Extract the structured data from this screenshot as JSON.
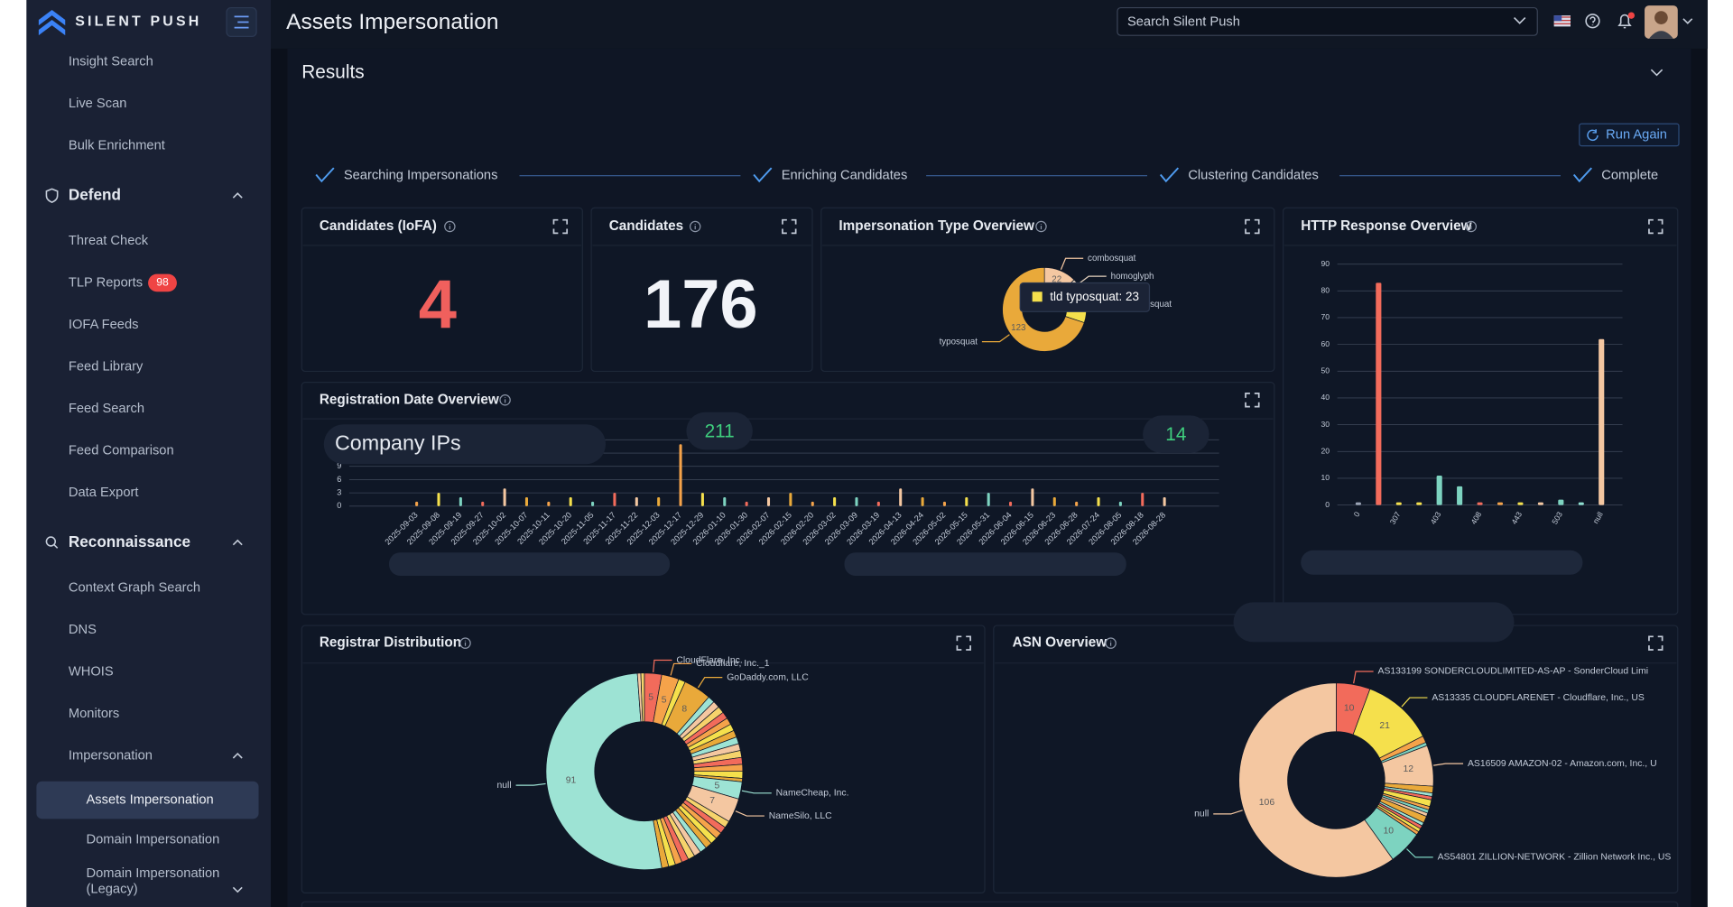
{
  "header": {
    "brand": "SILENT PUSH",
    "title": "Assets Impersonation",
    "search_placeholder": "Search Silent Push"
  },
  "sidebar": {
    "items": [
      "Insight Search",
      "Live Scan",
      "Bulk Enrichment"
    ],
    "defend": {
      "title": "Defend",
      "items": [
        "Threat Check",
        "TLP Reports",
        "IOFA Feeds",
        "Feed Library",
        "Feed Search",
        "Feed Comparison",
        "Data Export"
      ],
      "tlp_reports_badge": 98
    },
    "reconnaissance": {
      "title": "Reconnaissance",
      "items": [
        "Context Graph Search",
        "DNS",
        "WHOIS",
        "Monitors"
      ],
      "impersonation": {
        "title": "Impersonation",
        "items": [
          "Assets Impersonation",
          "Domain Impersonation",
          "Domain Impersonation (Legacy)"
        ]
      }
    }
  },
  "results": {
    "title": "Results",
    "run_again": "Run Again",
    "steps": [
      "Searching Impersonations",
      "Enriching Candidates",
      "Clustering Candidates",
      "Complete"
    ]
  },
  "stats": [
    {
      "title": "Candidates (IoFA)",
      "value": 4
    },
    {
      "title": "Candidates",
      "value": 176
    }
  ],
  "chart_data": [
    {
      "type": "pie",
      "title": "Impersonation Type Overview",
      "categories": [
        "combosquat",
        "homoglyph",
        "tld typosquat",
        "typosquat"
      ],
      "values": [
        22,
        8,
        23,
        123
      ],
      "colors": [
        "#f4c7a1",
        "#e6d3bf",
        "#f5e04c",
        "#e9a93a"
      ],
      "tooltip": "tld typosquat: 23"
    },
    {
      "type": "bar",
      "title": "HTTP Response Overview",
      "categories": [
        "0",
        null,
        "307",
        null,
        "403",
        null,
        "408",
        null,
        "443",
        null,
        "503",
        null,
        "null"
      ],
      "values": [
        1,
        83,
        1,
        1,
        11,
        7,
        1,
        1,
        1,
        1,
        2,
        1,
        62
      ],
      "colors": [
        "#9aa3b5",
        "#f26b5b",
        "#f5e04c",
        "#f5e04c",
        "#7dd3c0",
        "#7dd3c0",
        "#f26b5b",
        "#f5a34a",
        "#f5e04c",
        "#f4c7a1",
        "#7dd3c0",
        "#8ee0d0",
        "#f4c7a1"
      ],
      "ylim": [
        0,
        90
      ],
      "yticks": [
        0,
        10,
        20,
        30,
        40,
        50,
        60,
        70,
        80,
        90
      ],
      "grid": true
    },
    {
      "type": "bar",
      "title": "Registration Date Overview",
      "categories": [
        "2025-09-03",
        "2025-09-08",
        "2025-09-19",
        "2025-09-27",
        "2025-10-02",
        "2025-10-07",
        "2025-10-11",
        "2025-10-20",
        "2025-11-05",
        "2025-11-17",
        "2025-11-22",
        "2025-12-03",
        "2025-12-17",
        "2025-12-29",
        "2026-01-10",
        "2026-01-30",
        "2026-02-07",
        "2026-02-15",
        "2026-02-20",
        "2026-03-02",
        "2026-03-09",
        "2026-03-19",
        "2026-04-13",
        "2026-04-24",
        "2026-05-02",
        "2026-05-15",
        "2026-05-31",
        "2026-06-04",
        "2026-06-15",
        "2026-06-23",
        "2026-06-28",
        "2026-07-24",
        "2026-08-05",
        "2026-08-18",
        "2026-08-28"
      ],
      "values": [
        1,
        3,
        2,
        1,
        4,
        2,
        1,
        2,
        1,
        3,
        2,
        2,
        14,
        3,
        2,
        1,
        2,
        3,
        1,
        2,
        2,
        1,
        4,
        2,
        1,
        2,
        3,
        1,
        4,
        2,
        1,
        2,
        1,
        3,
        2
      ],
      "palette": [
        "#f5a34a",
        "#f5e04c",
        "#7dd3c0",
        "#f26b5b",
        "#f4c7a1",
        "#e9a93a"
      ],
      "ylim": [
        0,
        15
      ],
      "yticks": [
        0,
        3,
        6,
        9,
        12,
        15
      ],
      "grid": true,
      "annotations": [
        211,
        14
      ],
      "overlay_label": "Company IPs"
    },
    {
      "type": "pie",
      "title": "Registrar Distribution",
      "categories": [
        "CloudFlare, Inc.",
        "Cloudflare, Inc._1",
        null,
        "GoDaddy.com, LLC",
        null,
        null,
        null,
        null,
        null,
        null,
        null,
        null,
        null,
        null,
        null,
        null,
        null,
        null,
        "NameCheap, Inc.",
        "NameSilo, LLC",
        null,
        null,
        null,
        null,
        null,
        null,
        null,
        null,
        null,
        null,
        null,
        null,
        "null",
        null,
        null
      ],
      "values": [
        5,
        5,
        2,
        8,
        2,
        2,
        2,
        2,
        2,
        2,
        2,
        2,
        2,
        2,
        2,
        2,
        2,
        1,
        5,
        7,
        2,
        2,
        2,
        2,
        2,
        2,
        2,
        2,
        2,
        2,
        2,
        2,
        91,
        1,
        1
      ],
      "palette": [
        "#f26b5b",
        "#f5a34a",
        "#f5e04c",
        "#e9a93a",
        "#9de3d4",
        "#f4c7a1",
        "#f6d36b"
      ]
    },
    {
      "type": "pie",
      "title": "ASN Overview",
      "categories": [
        "AS133199 SONDERCLOUDLIMITED-AS-AP - SonderCloud Limi",
        "AS13335 CLOUDFLARENET - Cloudflare, Inc., US",
        null,
        null,
        "AS16509 AMAZON-02 - Amazon.com, Inc., U",
        null,
        null,
        null,
        null,
        null,
        null,
        null,
        null,
        null,
        null,
        null,
        null,
        "AS54801 ZILLION-NETWORK - Zillion Network Inc., US",
        "null"
      ],
      "values": [
        10,
        21,
        2,
        1,
        12,
        2,
        1,
        1,
        2,
        1,
        1,
        1,
        2,
        1,
        1,
        1,
        1,
        10,
        106
      ],
      "palette": [
        "#f26b5b",
        "#f5e04c",
        "#f5a34a",
        "#7dd3c0",
        "#f4c7a1",
        "#e9a93a",
        "#9de3d4"
      ]
    }
  ]
}
